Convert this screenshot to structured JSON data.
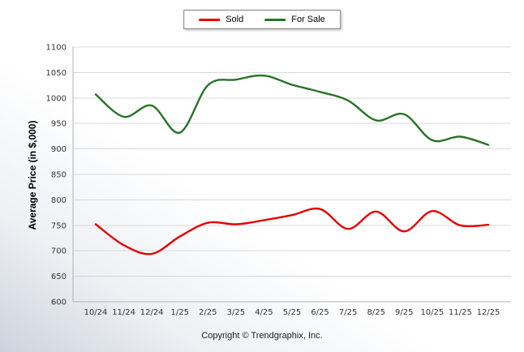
{
  "chart_data": {
    "type": "line",
    "categories": [
      "10/24",
      "11/24",
      "12/24",
      "1/25",
      "2/25",
      "3/25",
      "4/25",
      "5/25",
      "6/25",
      "7/25",
      "8/25",
      "9/25",
      "10/25",
      "11/25",
      "12/25"
    ],
    "series": [
      {
        "name": "Sold",
        "color": "#e60000",
        "values": [
          752,
          711,
          694,
          728,
          755,
          752,
          760,
          770,
          782,
          743,
          777,
          738,
          778,
          750,
          751
        ]
      },
      {
        "name": "For Sale",
        "color": "#267326",
        "values": [
          1007,
          963,
          985,
          932,
          1025,
          1036,
          1044,
          1026,
          1012,
          995,
          956,
          968,
          917,
          924,
          908
        ]
      }
    ],
    "title": "",
    "xlabel": "",
    "ylabel": "Average Price (in $,000)",
    "ylim": [
      600,
      1100
    ],
    "ytick_step": 50,
    "grid": "horizontal",
    "legend_position": "top-center",
    "grid_color": "#d9d9d9",
    "axis_color": "#b3b3b3",
    "tick_label_color": "#333333"
  },
  "legend": {
    "items": [
      {
        "label": "Sold"
      },
      {
        "label": "For Sale"
      }
    ]
  },
  "footer": {
    "copyright": "Copyright © Trendgraphix, Inc."
  }
}
